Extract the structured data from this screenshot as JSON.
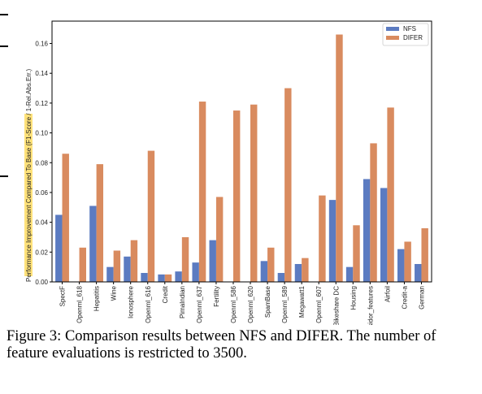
{
  "chart_data": {
    "type": "bar",
    "title": "",
    "xlabel": "",
    "ylabel": "Performance Improvement Compared To Base (F1-Score / 1-Rel.Abs.Err.)",
    "ylim": [
      0,
      0.175
    ],
    "yticks": [
      "0.00",
      "0.02",
      "0.04",
      "0.06",
      "0.08",
      "0.10",
      "0.12",
      "0.14",
      "0.16"
    ],
    "legend_position": "top-right",
    "grid": false,
    "categories": [
      "SpectF",
      "Openml_618",
      "Hepatitis",
      "Wine",
      "Ionosphere",
      "Openml_616",
      "Credit",
      "PimaIndian",
      "Openml_637",
      "Fertility",
      "Openml_586",
      "Openml_620",
      "SpamBase",
      "Openml_589",
      "Megawatt1",
      "Openml_607",
      "Bikeshare DC",
      "Housing",
      "Messidor_features",
      "Airfoil",
      "Credit-a",
      "German"
    ],
    "series": [
      {
        "name": "NFS",
        "color": "#5b7bc1",
        "values": [
          0.045,
          0.0,
          0.051,
          0.01,
          0.017,
          0.006,
          0.005,
          0.007,
          0.013,
          0.028,
          0.0,
          0.0,
          0.014,
          0.006,
          0.012,
          0.0,
          0.055,
          0.01,
          0.069,
          0.063,
          0.022,
          0.012
        ]
      },
      {
        "name": "DIFER",
        "color": "#d98b5f",
        "values": [
          0.086,
          0.023,
          0.079,
          0.021,
          0.028,
          0.088,
          0.005,
          0.03,
          0.121,
          0.057,
          0.115,
          0.119,
          0.023,
          0.13,
          0.016,
          0.058,
          0.166,
          0.038,
          0.093,
          0.117,
          0.027,
          0.036
        ]
      }
    ]
  },
  "caption": {
    "text": "Figure 3: Comparison results between NFS and DIFER. The number of feature evaluations is restricted to 3500."
  }
}
